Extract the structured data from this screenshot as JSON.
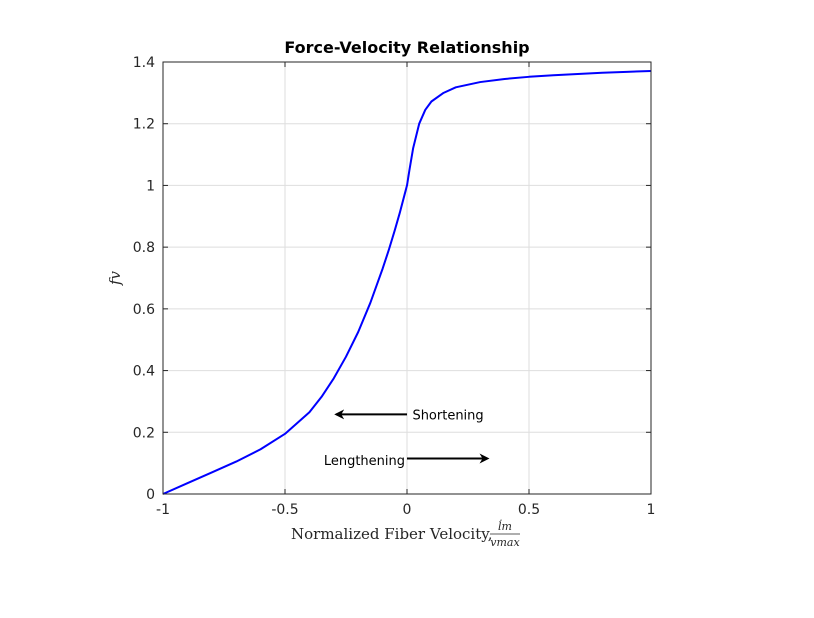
{
  "chart_data": {
    "type": "line",
    "title": "Force-Velocity Relationship",
    "xlabel": "Normalized Fiber Velocity,",
    "xlabel_frac_numerator": "l̇m",
    "xlabel_frac_denominator": "vmax",
    "ylabel": "fv",
    "xlim": [
      -1,
      1
    ],
    "ylim": [
      0,
      1.4
    ],
    "xticks": [
      -1,
      -0.5,
      0,
      0.5,
      1
    ],
    "xtick_labels": [
      "-1",
      "-0.5",
      "0",
      "0.5",
      "1"
    ],
    "yticks": [
      0,
      0.2,
      0.4,
      0.6,
      0.8,
      1,
      1.2,
      1.4
    ],
    "ytick_labels": [
      "0",
      "0.2",
      "0.4",
      "0.6",
      "0.8",
      "1",
      "1.2",
      "1.4"
    ],
    "grid": true,
    "series": [
      {
        "color": "#0000ff",
        "x": [
          -1,
          -0.9,
          -0.8,
          -0.7,
          -0.6,
          -0.5,
          -0.4,
          -0.35,
          -0.3,
          -0.25,
          -0.2,
          -0.15,
          -0.1,
          -0.075,
          -0.05,
          -0.03,
          -0.01,
          0,
          0.01,
          0.025,
          0.05,
          0.075,
          0.1,
          0.15,
          0.2,
          0.3,
          0.4,
          0.5,
          0.6,
          0.7,
          0.8,
          0.9,
          1
        ],
        "y": [
          0,
          0.035,
          0.07,
          0.105,
          0.145,
          0.195,
          0.265,
          0.315,
          0.375,
          0.445,
          0.525,
          0.62,
          0.73,
          0.79,
          0.855,
          0.91,
          0.97,
          1.0,
          1.05,
          1.12,
          1.2,
          1.245,
          1.272,
          1.3,
          1.318,
          1.335,
          1.345,
          1.352,
          1.357,
          1.361,
          1.365,
          1.368,
          1.371
        ]
      }
    ],
    "annotations": [
      {
        "text": "Shortening",
        "arrow_from": [
          0,
          0.258
        ],
        "arrow_to": [
          -0.29,
          0.258
        ],
        "text_at": [
          0.01,
          0.258
        ],
        "align": "start"
      },
      {
        "text": "Lengthening",
        "arrow_from": [
          0,
          0.115
        ],
        "arrow_to": [
          0.33,
          0.115
        ],
        "text_at": [
          0,
          0.11
        ],
        "align": "end"
      }
    ]
  }
}
